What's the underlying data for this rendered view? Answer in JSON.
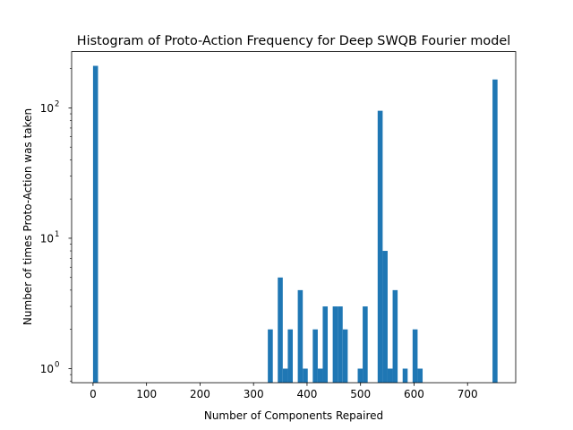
{
  "chart_data": {
    "type": "bar",
    "title": "Histogram of Proto-Action Frequency for Deep SWQB Fourier model",
    "xlabel": "Number of Components Repaired",
    "ylabel": "Number of times Proto-Action was taken",
    "xlim": [
      -40,
      790
    ],
    "ylim": [
      0.78,
      270
    ],
    "yscale": "log",
    "bar_color": "#1f77b4",
    "bin_width": 9.33,
    "x_ticks": [
      {
        "value": 0,
        "label": "0"
      },
      {
        "value": 100,
        "label": "100"
      },
      {
        "value": 200,
        "label": "200"
      },
      {
        "value": 300,
        "label": "300"
      },
      {
        "value": 400,
        "label": "400"
      },
      {
        "value": 500,
        "label": "500"
      },
      {
        "value": 600,
        "label": "600"
      },
      {
        "value": 700,
        "label": "700"
      }
    ],
    "y_ticks": [
      {
        "value": 1,
        "base": "10",
        "exp": "0"
      },
      {
        "value": 10,
        "base": "10",
        "exp": "1"
      },
      {
        "value": 100,
        "base": "10",
        "exp": "2"
      }
    ],
    "bins": [
      {
        "x": 0,
        "count": 210
      },
      {
        "x": 326.7,
        "count": 2
      },
      {
        "x": 345.3,
        "count": 5
      },
      {
        "x": 354.7,
        "count": 1
      },
      {
        "x": 364.0,
        "count": 2
      },
      {
        "x": 382.7,
        "count": 4
      },
      {
        "x": 392.0,
        "count": 1
      },
      {
        "x": 410.7,
        "count": 2
      },
      {
        "x": 420.0,
        "count": 1
      },
      {
        "x": 429.3,
        "count": 3
      },
      {
        "x": 448.0,
        "count": 3
      },
      {
        "x": 457.3,
        "count": 3
      },
      {
        "x": 466.7,
        "count": 2
      },
      {
        "x": 494.7,
        "count": 1
      },
      {
        "x": 504.0,
        "count": 3
      },
      {
        "x": 532.0,
        "count": 95
      },
      {
        "x": 541.3,
        "count": 8
      },
      {
        "x": 550.7,
        "count": 1
      },
      {
        "x": 560.0,
        "count": 4
      },
      {
        "x": 578.7,
        "count": 1
      },
      {
        "x": 597.3,
        "count": 2
      },
      {
        "x": 606.7,
        "count": 1
      },
      {
        "x": 746.7,
        "count": 165
      }
    ]
  }
}
